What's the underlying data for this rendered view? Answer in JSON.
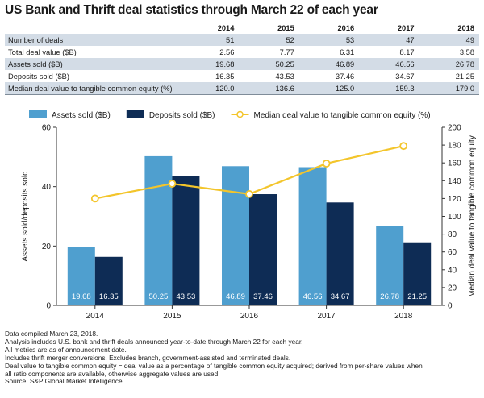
{
  "title": "US Bank and Thrift deal statistics through March 22 of each year",
  "table": {
    "years": [
      "2014",
      "2015",
      "2016",
      "2017",
      "2018"
    ],
    "rows": [
      {
        "label": "Number of deals",
        "values": [
          "51",
          "52",
          "53",
          "47",
          "49"
        ]
      },
      {
        "label": "Total deal value ($B)",
        "values": [
          "2.56",
          "7.77",
          "6.31",
          "8.17",
          "3.58"
        ]
      },
      {
        "label": "Assets sold ($B)",
        "values": [
          "19.68",
          "50.25",
          "46.89",
          "46.56",
          "26.78"
        ]
      },
      {
        "label": "Deposits sold ($B)",
        "values": [
          "16.35",
          "43.53",
          "37.46",
          "34.67",
          "21.25"
        ]
      },
      {
        "label": "Median deal value to tangible common equity (%)",
        "values": [
          "120.0",
          "136.6",
          "125.0",
          "159.3",
          "179.0"
        ]
      }
    ]
  },
  "chart_data": {
    "type": "bar",
    "categories": [
      "2014",
      "2015",
      "2016",
      "2017",
      "2018"
    ],
    "series": [
      {
        "name": "Assets sold ($B)",
        "type": "bar",
        "axis": "left",
        "color": "#4f9fcf",
        "values": [
          19.68,
          50.25,
          46.89,
          46.56,
          26.78
        ],
        "labels": [
          "19.68",
          "50.25",
          "46.89",
          "46.56",
          "26.78"
        ]
      },
      {
        "name": "Deposits sold ($B)",
        "type": "bar",
        "axis": "left",
        "color": "#0e2c55",
        "values": [
          16.35,
          43.53,
          37.46,
          34.67,
          21.25
        ],
        "labels": [
          "16.35",
          "43.53",
          "37.46",
          "34.67",
          "21.25"
        ]
      },
      {
        "name": "Median deal value to tangible common equity (%)",
        "type": "line",
        "axis": "right",
        "color": "#f3c52b",
        "values": [
          120.0,
          136.6,
          125.0,
          159.3,
          179.0
        ]
      }
    ],
    "ylabel": "Assets sold/deposits sold",
    "y2label": "Median deal value to tangible common equity",
    "ylim": [
      0,
      60
    ],
    "y2lim": [
      0,
      200
    ],
    "yticks": [
      "0",
      "20",
      "40",
      "60"
    ],
    "y2ticks": [
      "0",
      "20",
      "40",
      "60",
      "80",
      "100",
      "120",
      "140",
      "160",
      "180",
      "200"
    ],
    "grid": false,
    "legend": "top"
  },
  "notes": [
    "Data compiled March 23, 2018.",
    "Analysis includes U.S. bank and thrift deals announced year-to-date through March 22 for each year.",
    "All metrics are as of announcement date.",
    "Includes thrift merger conversions. Excludes branch, government-assisted and terminated deals.",
    "Deal value to tangible common equity = deal value as a percentage of tangible common equity acquired; derived from per-share values when",
    "all ratio components are available, otherwise aggregate values are used",
    "Source: S&P Global Market Intelligence"
  ]
}
